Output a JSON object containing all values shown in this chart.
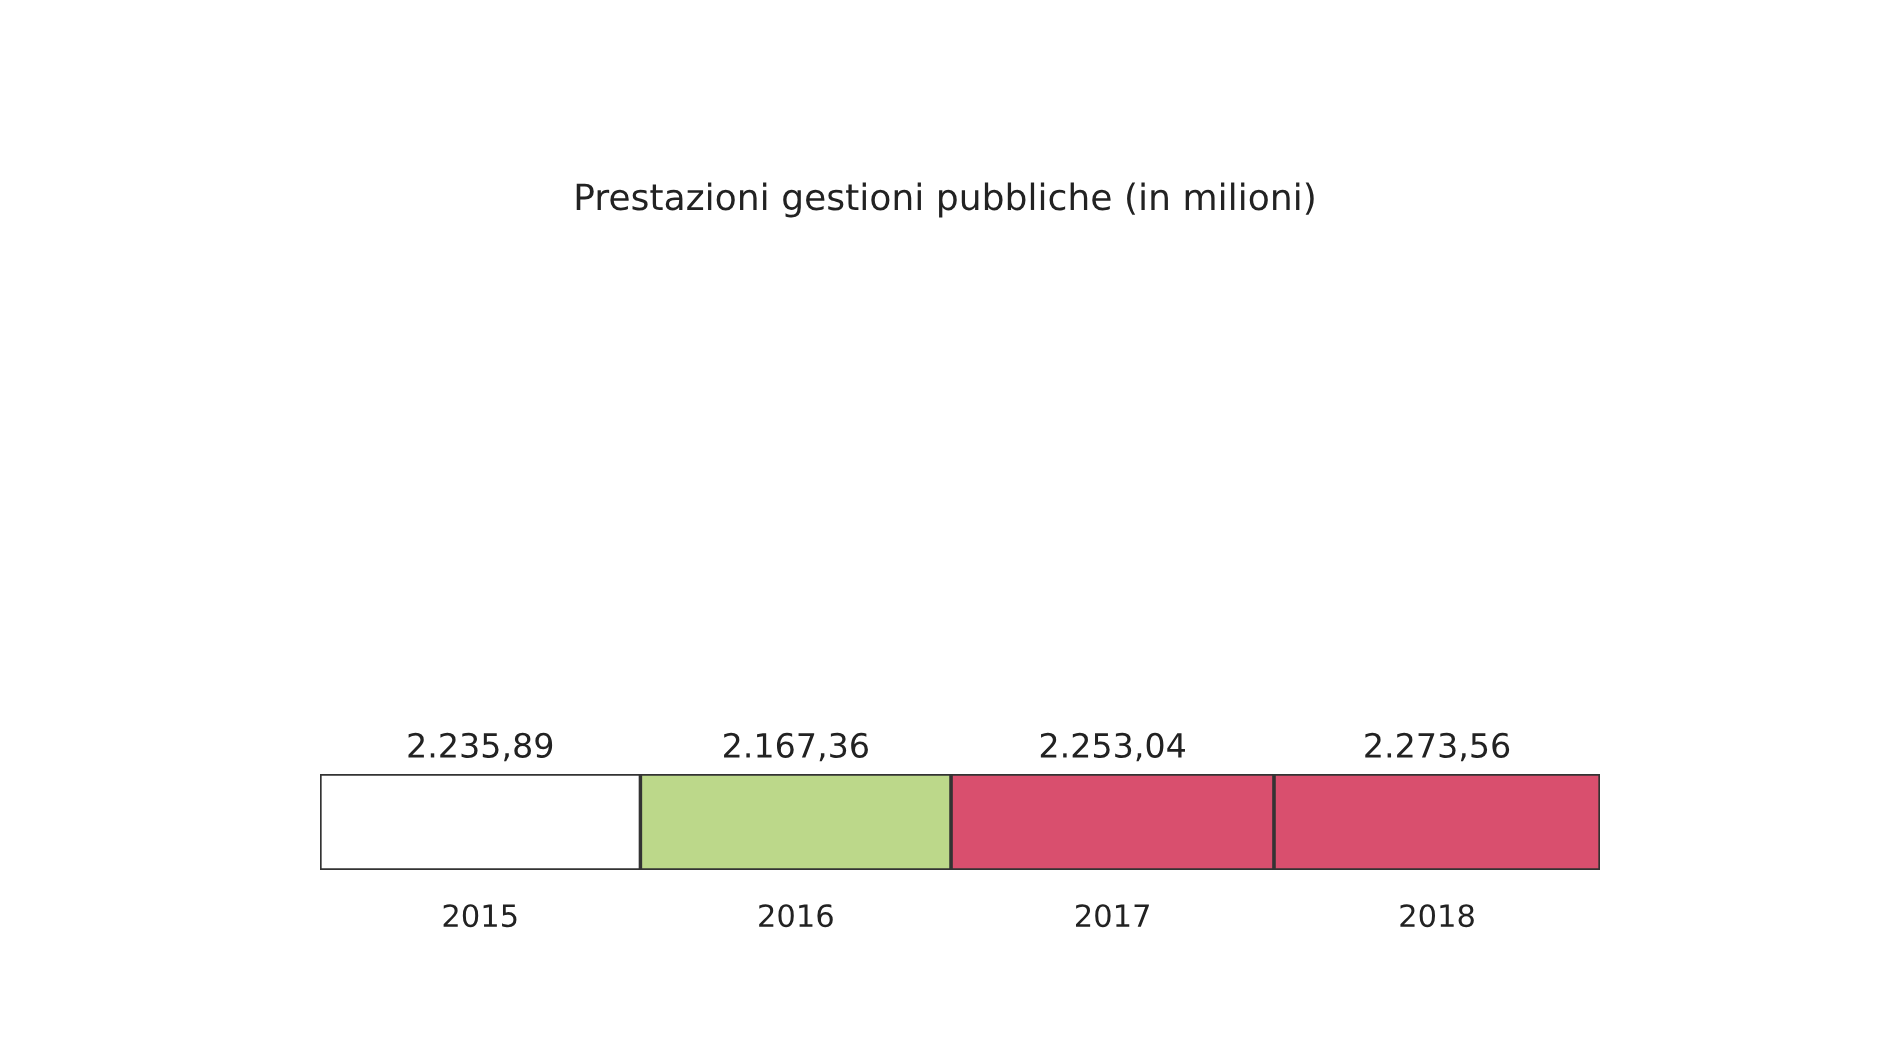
{
  "chart_data": {
    "type": "bar",
    "orientation": "horizontal",
    "stacked": true,
    "title": "Prestazioni gestioni pubbliche (in milioni)",
    "categories": [
      null
    ],
    "series": [
      {
        "name": "2015",
        "color": "#ffffff",
        "values": [
          2235.89
        ],
        "value_labels": [
          "2.235,89"
        ]
      },
      {
        "name": "2016",
        "color": "#bcd88a",
        "values": [
          2167.36
        ],
        "value_labels": [
          "2.167,36"
        ]
      },
      {
        "name": "2017",
        "color": "#d94f6e",
        "values": [
          2253.04
        ],
        "value_labels": [
          "2.253,04"
        ]
      },
      {
        "name": "2018",
        "color": "#d94f6e",
        "values": [
          2273.56
        ],
        "value_labels": [
          "2.273,56"
        ]
      }
    ]
  }
}
